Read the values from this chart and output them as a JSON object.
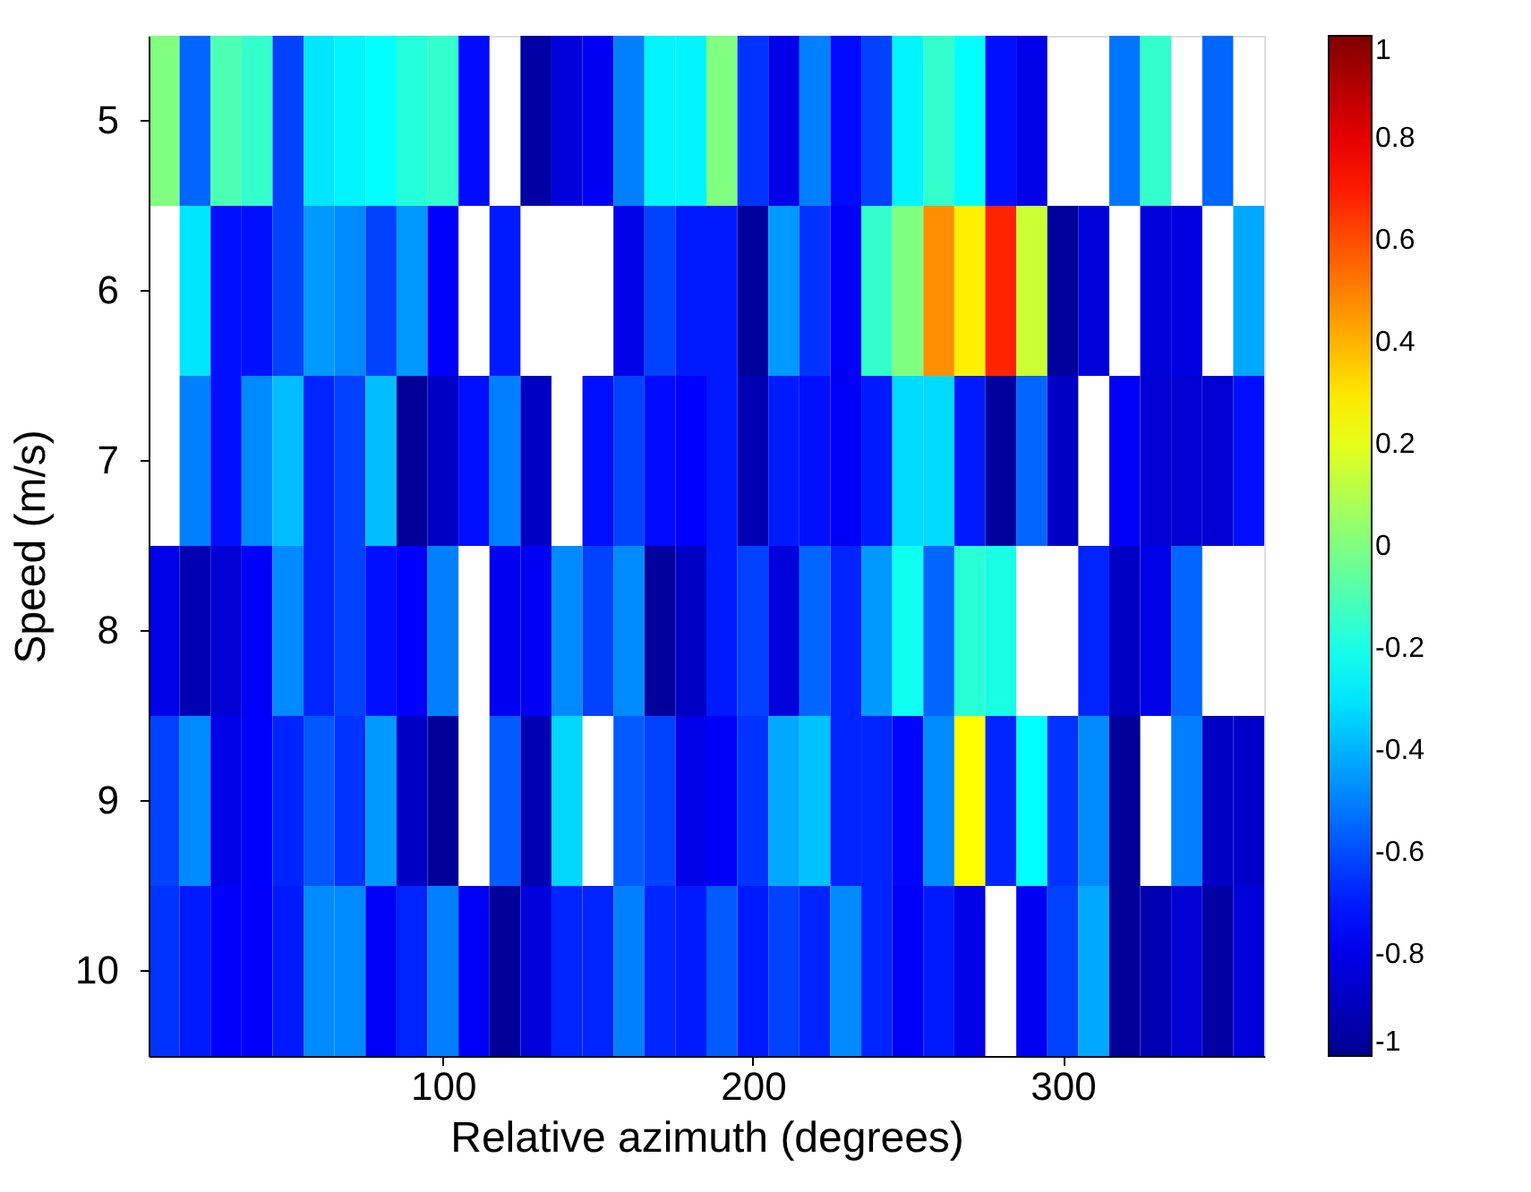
{
  "chart_data": {
    "type": "heatmap",
    "xlabel": "Relative azimuth (degrees)",
    "ylabel": "Speed (m/s)",
    "x": [
      10,
      20,
      30,
      40,
      50,
      60,
      70,
      80,
      90,
      100,
      110,
      120,
      130,
      140,
      150,
      160,
      170,
      180,
      190,
      200,
      210,
      220,
      230,
      240,
      250,
      260,
      270,
      280,
      290,
      300,
      310,
      320,
      330,
      340,
      350,
      360
    ],
    "xlim": [
      5,
      365
    ],
    "xticks": [
      100,
      200,
      300
    ],
    "y_categories": [
      "5",
      "6",
      "7",
      "8",
      "9",
      "10"
    ],
    "cells": [
      [
        0.0,
        -0.55,
        -0.1,
        -0.15,
        -0.62,
        -0.3,
        -0.27,
        -0.25,
        -0.18,
        -0.15,
        -0.73,
        null,
        -0.95,
        -0.83,
        -0.78,
        -0.5,
        -0.27,
        -0.27,
        0.0,
        -0.65,
        -0.8,
        -0.5,
        -0.73,
        -0.62,
        -0.27,
        -0.15,
        -0.25,
        -0.72,
        -0.8,
        null,
        null,
        -0.52,
        -0.15,
        null,
        -0.55,
        null
      ],
      [
        null,
        -0.3,
        -0.72,
        -0.72,
        -0.62,
        -0.45,
        -0.48,
        -0.62,
        -0.45,
        -0.75,
        null,
        -0.7,
        null,
        null,
        null,
        -0.8,
        -0.62,
        -0.7,
        -0.7,
        -0.97,
        -0.45,
        -0.65,
        -0.77,
        -0.15,
        0.0,
        0.47,
        0.28,
        0.68,
        0.15,
        -0.97,
        -0.83,
        null,
        -0.83,
        -0.82,
        null,
        -0.42
      ],
      [
        null,
        -0.5,
        -0.72,
        -0.48,
        -0.38,
        -0.68,
        -0.62,
        -0.38,
        -0.98,
        -0.88,
        -0.72,
        -0.5,
        -0.88,
        null,
        -0.72,
        -0.62,
        -0.73,
        -0.75,
        -0.7,
        -0.92,
        -0.7,
        -0.72,
        -0.77,
        -0.7,
        -0.32,
        -0.32,
        -0.7,
        -0.97,
        -0.55,
        -0.88,
        null,
        -0.77,
        -0.85,
        -0.85,
        -0.85,
        -0.72
      ],
      [
        -0.8,
        -0.92,
        -0.85,
        -0.76,
        -0.48,
        -0.68,
        -0.62,
        -0.72,
        -0.75,
        -0.5,
        null,
        -0.78,
        -0.78,
        -0.48,
        -0.62,
        -0.48,
        -0.97,
        -0.88,
        -0.7,
        -0.62,
        -0.83,
        -0.55,
        -0.68,
        -0.45,
        -0.22,
        -0.55,
        -0.17,
        -0.2,
        null,
        null,
        -0.68,
        -0.88,
        -0.8,
        -0.55,
        null,
        null
      ],
      [
        -0.62,
        -0.48,
        -0.8,
        -0.75,
        -0.68,
        -0.58,
        -0.65,
        -0.45,
        -0.88,
        -0.98,
        null,
        -0.57,
        -0.92,
        -0.33,
        null,
        -0.57,
        -0.62,
        -0.8,
        -0.77,
        -0.65,
        -0.42,
        -0.37,
        -0.68,
        -0.68,
        -0.74,
        -0.48,
        0.25,
        -0.68,
        -0.25,
        -0.65,
        -0.48,
        -0.98,
        null,
        -0.5,
        -0.88,
        -0.87
      ],
      [
        -0.65,
        -0.7,
        -0.76,
        -0.76,
        -0.7,
        -0.48,
        -0.48,
        -0.77,
        -0.68,
        -0.5,
        -0.77,
        -0.98,
        -0.83,
        -0.68,
        -0.68,
        -0.5,
        -0.68,
        -0.7,
        -0.57,
        -0.7,
        -0.62,
        -0.68,
        -0.48,
        -0.68,
        -0.77,
        -0.7,
        -0.8,
        null,
        -0.78,
        -0.62,
        -0.42,
        -0.98,
        -0.92,
        -0.85,
        -0.95,
        -0.83
      ]
    ],
    "clim": [
      -1,
      1
    ],
    "cticks": [
      -1,
      -0.8,
      -0.6,
      -0.4,
      -0.2,
      0,
      0.2,
      0.4,
      0.6,
      0.8,
      1
    ]
  }
}
